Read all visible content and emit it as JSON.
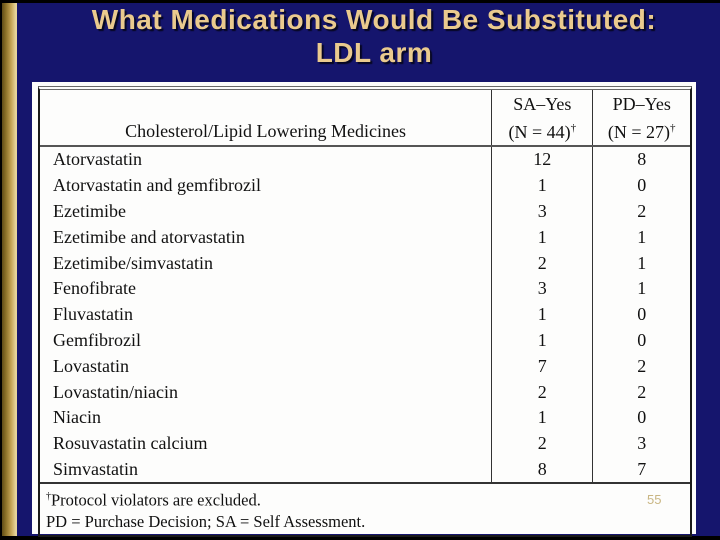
{
  "slide": {
    "title_line1": "What Medications Would Be Substituted:",
    "title_line2": "LDL arm",
    "page_number": "55",
    "colors": {
      "background": "#15156D",
      "title_text": "#EACA8E",
      "accent_bar_dark": "#5E4C18",
      "accent_bar_light": "#EAD9A2",
      "panel": "#FDFDFC",
      "page_number": "#C9B683"
    }
  },
  "table": {
    "columns": [
      {
        "label": "Cholesterol/Lipid Lowering Medicines"
      },
      {
        "line1": "SA–Yes",
        "line2": "(N = 44)",
        "dagger": "†"
      },
      {
        "line1": "PD–Yes",
        "line2": "(N = 27)",
        "dagger": "†"
      }
    ],
    "rows": [
      {
        "name": "Atorvastatin",
        "sa": "12",
        "pd": "8"
      },
      {
        "name": "Atorvastatin and gemfibrozil",
        "sa": "1",
        "pd": "0"
      },
      {
        "name": "Ezetimibe",
        "sa": "3",
        "pd": "2"
      },
      {
        "name": "Ezetimibe and atorvastatin",
        "sa": "1",
        "pd": "1"
      },
      {
        "name": "Ezetimibe/simvastatin",
        "sa": "2",
        "pd": "1"
      },
      {
        "name": "Fenofibrate",
        "sa": "3",
        "pd": "1"
      },
      {
        "name": "Fluvastatin",
        "sa": "1",
        "pd": "0"
      },
      {
        "name": "Gemfibrozil",
        "sa": "1",
        "pd": "0"
      },
      {
        "name": "Lovastatin",
        "sa": "7",
        "pd": "2"
      },
      {
        "name": "Lovastatin/niacin",
        "sa": "2",
        "pd": "2"
      },
      {
        "name": "Niacin",
        "sa": "1",
        "pd": "0"
      },
      {
        "name": "Rosuvastatin calcium",
        "sa": "2",
        "pd": "3"
      },
      {
        "name": "Simvastatin",
        "sa": "8",
        "pd": "7"
      }
    ]
  },
  "footnotes": {
    "dagger": "†",
    "note1": "Protocol violators are excluded.",
    "note2": "PD = Purchase Decision; SA = Self Assessment."
  }
}
